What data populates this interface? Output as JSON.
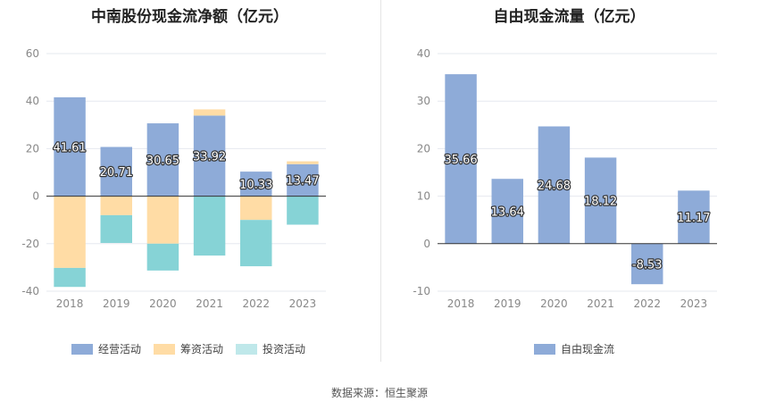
{
  "source": "数据来源：恒生聚源",
  "colors": {
    "operating": "#8eabd8",
    "financing": "#ffdca5",
    "investing": "#86d3d6",
    "fcf": "#8eabd8",
    "grid": "#e6e8ef",
    "axis": "#333333",
    "tick": "#888888"
  },
  "chart_data": [
    {
      "type": "bar",
      "title": "中南股份现金流净额（亿元）",
      "categories": [
        "2018",
        "2019",
        "2020",
        "2021",
        "2022",
        "2023"
      ],
      "series": [
        {
          "name": "经营活动",
          "values": [
            41.61,
            20.71,
            30.65,
            33.92,
            10.33,
            13.47
          ]
        },
        {
          "name": "筹资活动",
          "values": [
            -30.2,
            -8.0,
            -20.0,
            2.6,
            -10.0,
            1.2
          ]
        },
        {
          "name": "投资活动",
          "values": [
            -8.0,
            -11.7,
            -11.3,
            -25.0,
            -19.5,
            -12.0
          ]
        }
      ],
      "stacked": true,
      "ylim": [
        -40,
        60
      ],
      "yticks": [
        -40,
        -20,
        0,
        20,
        40,
        60
      ],
      "legend": "bottom",
      "data_labels_series": "经营活动"
    },
    {
      "type": "bar",
      "title": "自由现金流量（亿元）",
      "categories": [
        "2018",
        "2019",
        "2020",
        "2021",
        "2022",
        "2023"
      ],
      "series": [
        {
          "name": "自由现金流",
          "values": [
            35.66,
            13.64,
            24.68,
            18.12,
            -8.53,
            11.17
          ]
        }
      ],
      "ylim": [
        -10,
        40
      ],
      "yticks": [
        -10,
        0,
        10,
        20,
        30,
        40
      ],
      "legend": "bottom"
    }
  ]
}
